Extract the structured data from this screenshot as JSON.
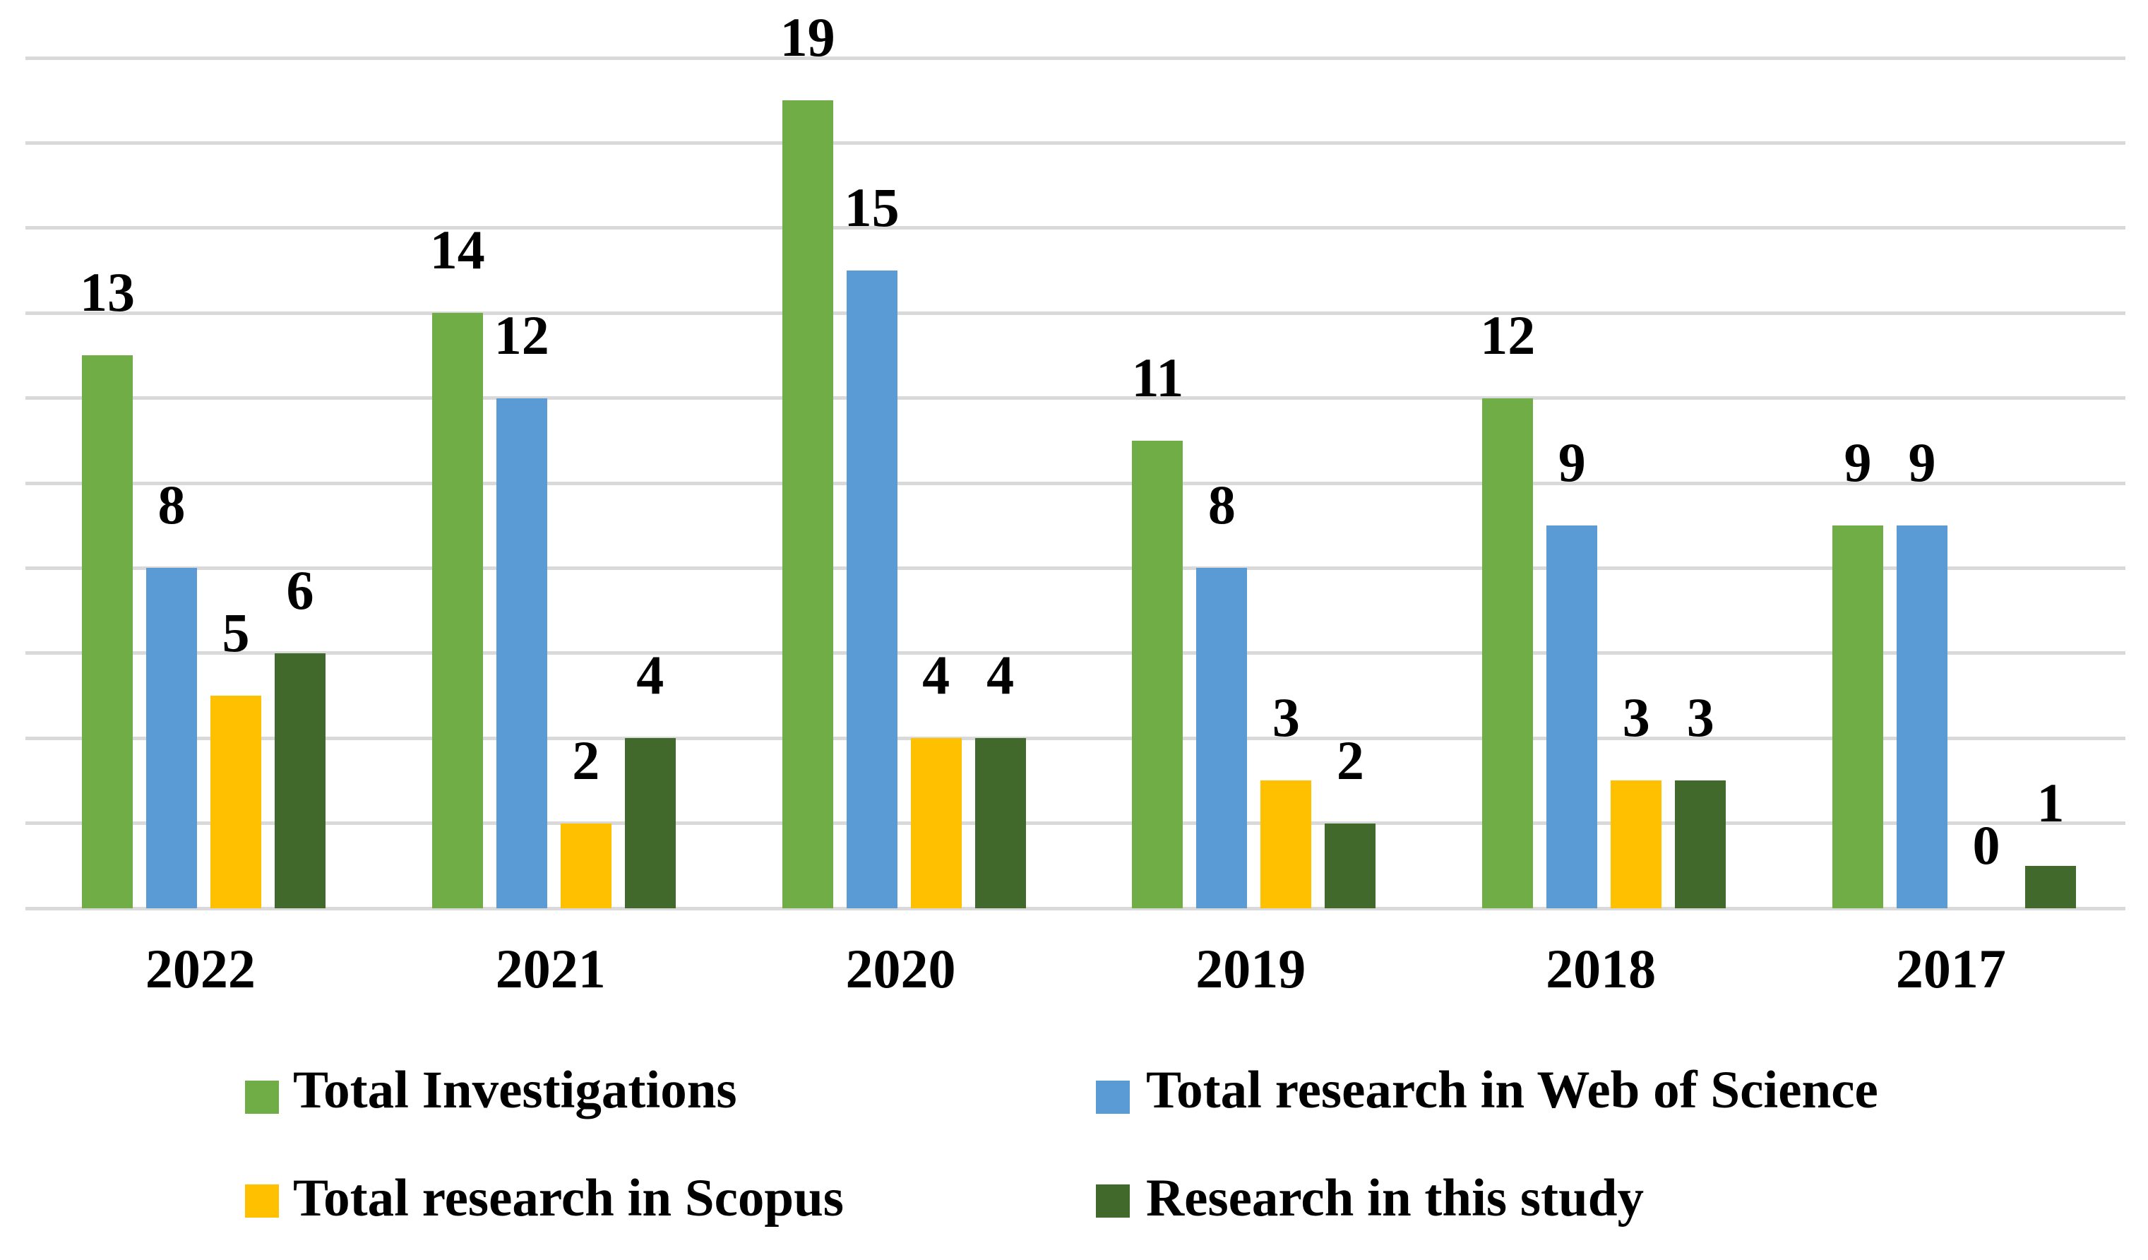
{
  "chart_data": {
    "type": "bar",
    "title": "",
    "xlabel": "",
    "ylabel": "",
    "categories": [
      "2022",
      "2021",
      "2020",
      "2019",
      "2018",
      "2017"
    ],
    "series": [
      {
        "name": "Total Investigations",
        "color": "#70AD47",
        "values": [
          13,
          14,
          19,
          11,
          12,
          9
        ]
      },
      {
        "name": "Total research in Web of Science",
        "color": "#5B9BD5",
        "values": [
          8,
          12,
          15,
          8,
          9,
          9
        ]
      },
      {
        "name": "Total research in Scopus",
        "color": "#FFC000",
        "values": [
          5,
          2,
          4,
          3,
          3,
          0
        ]
      },
      {
        "name": "Research in this study",
        "color": "#41692C",
        "values": [
          6,
          4,
          4,
          2,
          3,
          1
        ]
      }
    ],
    "ylim": [
      0,
      20
    ],
    "gridline_step": 2,
    "grid": true,
    "gridline_color": "#D9D9D9",
    "background_color": "#FFFFFF",
    "text_color": "#000000",
    "data_labels": true,
    "legend_position": "bottom"
  }
}
